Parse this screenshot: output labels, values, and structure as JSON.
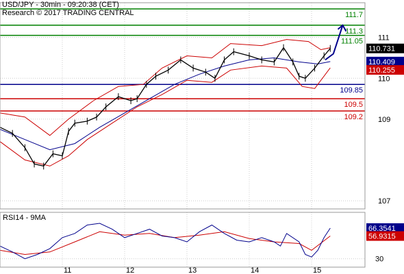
{
  "header": {
    "line1": "USD/JPY - 30min - 09:20:38 (CET)",
    "line2": "Research © 2017 TRADING CENTRAL"
  },
  "chart_data": [
    {
      "type": "line",
      "panel": "price",
      "x_ticks": [
        "11",
        "12",
        "13",
        "14",
        "15"
      ],
      "y_ticks": [
        111,
        110,
        109,
        107
      ],
      "ylim": [
        106.8,
        111.85
      ],
      "grid": true,
      "levels": [
        {
          "label": "111.7",
          "value": 111.7,
          "color": "#008000"
        },
        {
          "label": "111.3",
          "value": 111.3,
          "color": "#008000"
        },
        {
          "label": "111.05",
          "value": 111.05,
          "color": "#008000"
        },
        {
          "label": "109.85",
          "value": 109.85,
          "color": "#00008b"
        },
        {
          "label": "109.5",
          "value": 109.5,
          "color": "#cc0000"
        },
        {
          "label": "109.2",
          "value": 109.2,
          "color": "#cc0000"
        }
      ],
      "value_boxes": [
        {
          "label": "110.731",
          "value": 110.731,
          "bg": "#000000",
          "fg": "#ffffff"
        },
        {
          "label": "110.409",
          "value": 110.409,
          "bg": "#00008b",
          "fg": "#ffffff"
        },
        {
          "label": "110.255",
          "value": 110.255,
          "bg": "#cc0000",
          "fg": "#ffffff"
        }
      ],
      "price": [
        [
          0,
          108.8
        ],
        [
          0.2,
          108.65
        ],
        [
          0.4,
          108.3
        ],
        [
          0.55,
          107.9
        ],
        [
          0.7,
          107.85
        ],
        [
          0.85,
          108.15
        ],
        [
          1.0,
          108.1
        ],
        [
          1.1,
          108.7
        ],
        [
          1.2,
          108.9
        ],
        [
          1.4,
          108.95
        ],
        [
          1.55,
          109.05
        ],
        [
          1.7,
          109.3
        ],
        [
          1.9,
          109.55
        ],
        [
          2.1,
          109.45
        ],
        [
          2.2,
          109.5
        ],
        [
          2.35,
          109.85
        ],
        [
          2.5,
          110.05
        ],
        [
          2.7,
          110.2
        ],
        [
          2.9,
          110.45
        ],
        [
          3.1,
          110.25
        ],
        [
          3.3,
          110.15
        ],
        [
          3.45,
          110.0
        ],
        [
          3.6,
          110.45
        ],
        [
          3.75,
          110.65
        ],
        [
          4.0,
          110.55
        ],
        [
          4.2,
          110.45
        ],
        [
          4.4,
          110.4
        ],
        [
          4.55,
          110.75
        ],
        [
          4.7,
          110.4
        ],
        [
          4.8,
          110.05
        ],
        [
          4.9,
          110.0
        ],
        [
          5.05,
          110.25
        ],
        [
          5.2,
          110.55
        ],
        [
          5.3,
          110.731
        ]
      ],
      "ma": [
        [
          0,
          108.75
        ],
        [
          0.4,
          108.5
        ],
        [
          0.8,
          108.25
        ],
        [
          1.2,
          108.4
        ],
        [
          1.6,
          108.8
        ],
        [
          2.0,
          109.15
        ],
        [
          2.4,
          109.5
        ],
        [
          2.8,
          109.85
        ],
        [
          3.2,
          110.1
        ],
        [
          3.6,
          110.3
        ],
        [
          4.0,
          110.45
        ],
        [
          4.4,
          110.5
        ],
        [
          4.8,
          110.4
        ],
        [
          5.1,
          110.35
        ],
        [
          5.3,
          110.409
        ]
      ],
      "band_upper": [
        [
          0,
          109.15
        ],
        [
          0.4,
          109.05
        ],
        [
          0.8,
          108.6
        ],
        [
          1.1,
          109.0
        ],
        [
          1.5,
          109.45
        ],
        [
          1.9,
          109.8
        ],
        [
          2.3,
          109.85
        ],
        [
          2.6,
          110.25
        ],
        [
          3.0,
          110.55
        ],
        [
          3.4,
          110.5
        ],
        [
          3.7,
          110.85
        ],
        [
          4.2,
          110.8
        ],
        [
          4.6,
          110.95
        ],
        [
          4.95,
          110.9
        ],
        [
          5.15,
          110.7
        ],
        [
          5.3,
          110.75
        ]
      ],
      "band_lower": [
        [
          0,
          108.45
        ],
        [
          0.4,
          108.0
        ],
        [
          0.8,
          107.85
        ],
        [
          1.1,
          108.1
        ],
        [
          1.4,
          108.5
        ],
        [
          1.8,
          108.9
        ],
        [
          2.2,
          109.3
        ],
        [
          2.6,
          109.6
        ],
        [
          3.0,
          109.95
        ],
        [
          3.4,
          109.9
        ],
        [
          3.7,
          110.2
        ],
        [
          4.2,
          110.3
        ],
        [
          4.6,
          110.25
        ],
        [
          4.85,
          109.8
        ],
        [
          5.05,
          109.75
        ],
        [
          5.3,
          110.255
        ]
      ],
      "forecast_arrow": [
        [
          5.35,
          110.6
        ],
        [
          5.5,
          111.3
        ]
      ]
    },
    {
      "type": "line",
      "panel": "rsi",
      "title": "RSI14 - 9MA",
      "y_ticks": [
        30
      ],
      "ylim": [
        20,
        85
      ],
      "value_boxes": [
        {
          "label": "66.3541",
          "value": 66.3541,
          "bg": "#00008b",
          "fg": "#ffffff"
        },
        {
          "label": "56.9315",
          "value": 56.9315,
          "bg": "#cc0000",
          "fg": "#ffffff"
        }
      ],
      "rsi": [
        [
          0,
          45
        ],
        [
          0.2,
          38
        ],
        [
          0.4,
          30
        ],
        [
          0.6,
          35
        ],
        [
          0.8,
          42
        ],
        [
          1.0,
          55
        ],
        [
          1.2,
          60
        ],
        [
          1.4,
          70
        ],
        [
          1.6,
          72
        ],
        [
          1.8,
          65
        ],
        [
          2.0,
          55
        ],
        [
          2.2,
          60
        ],
        [
          2.4,
          65
        ],
        [
          2.6,
          57
        ],
        [
          2.8,
          55
        ],
        [
          3.0,
          50
        ],
        [
          3.2,
          62
        ],
        [
          3.4,
          70
        ],
        [
          3.6,
          60
        ],
        [
          3.8,
          52
        ],
        [
          4.0,
          50
        ],
        [
          4.2,
          55
        ],
        [
          4.4,
          50
        ],
        [
          4.5,
          45
        ],
        [
          4.6,
          60
        ],
        [
          4.8,
          50
        ],
        [
          4.9,
          35
        ],
        [
          5.0,
          32
        ],
        [
          5.1,
          40
        ],
        [
          5.2,
          55
        ],
        [
          5.3,
          66.35
        ]
      ],
      "rsi_ma": [
        [
          0,
          40
        ],
        [
          0.4,
          35
        ],
        [
          0.8,
          38
        ],
        [
          1.2,
          50
        ],
        [
          1.6,
          62
        ],
        [
          2.0,
          58
        ],
        [
          2.4,
          60
        ],
        [
          2.8,
          55
        ],
        [
          3.2,
          58
        ],
        [
          3.6,
          62
        ],
        [
          4.0,
          54
        ],
        [
          4.4,
          50
        ],
        [
          4.8,
          48
        ],
        [
          5.0,
          40
        ],
        [
          5.3,
          56.93
        ]
      ]
    }
  ]
}
